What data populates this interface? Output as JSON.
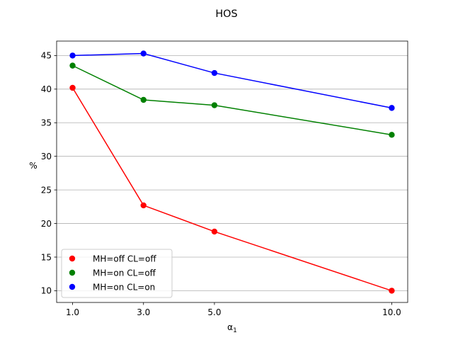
{
  "chart_data": {
    "type": "line",
    "title": "HOS",
    "xlabel_main": "α",
    "xlabel_sub": "1",
    "ylabel": "%",
    "x": [
      1.0,
      3.0,
      5.0,
      10.0
    ],
    "x_tick_labels": [
      "1.0",
      "3.0",
      "5.0",
      "10.0"
    ],
    "y_ticks": [
      10,
      15,
      20,
      25,
      30,
      35,
      40,
      45
    ],
    "y_tick_labels": [
      "10",
      "15",
      "20",
      "25",
      "30",
      "35",
      "40",
      "45"
    ],
    "ylim": [
      8.25,
      47.15
    ],
    "xlim": [
      0.55,
      10.45
    ],
    "grid": "y",
    "legend_position": "lower-left",
    "series": [
      {
        "name": "MH=off CL=off",
        "color": "#ff0000",
        "values": [
          40.2,
          22.7,
          18.8,
          10.0
        ]
      },
      {
        "name": "MH=on CL=off",
        "color": "#008000",
        "values": [
          43.5,
          38.4,
          37.6,
          33.2
        ]
      },
      {
        "name": "MH=on CL=on",
        "color": "#0000ff",
        "values": [
          45.0,
          45.3,
          42.4,
          37.2
        ]
      }
    ]
  }
}
